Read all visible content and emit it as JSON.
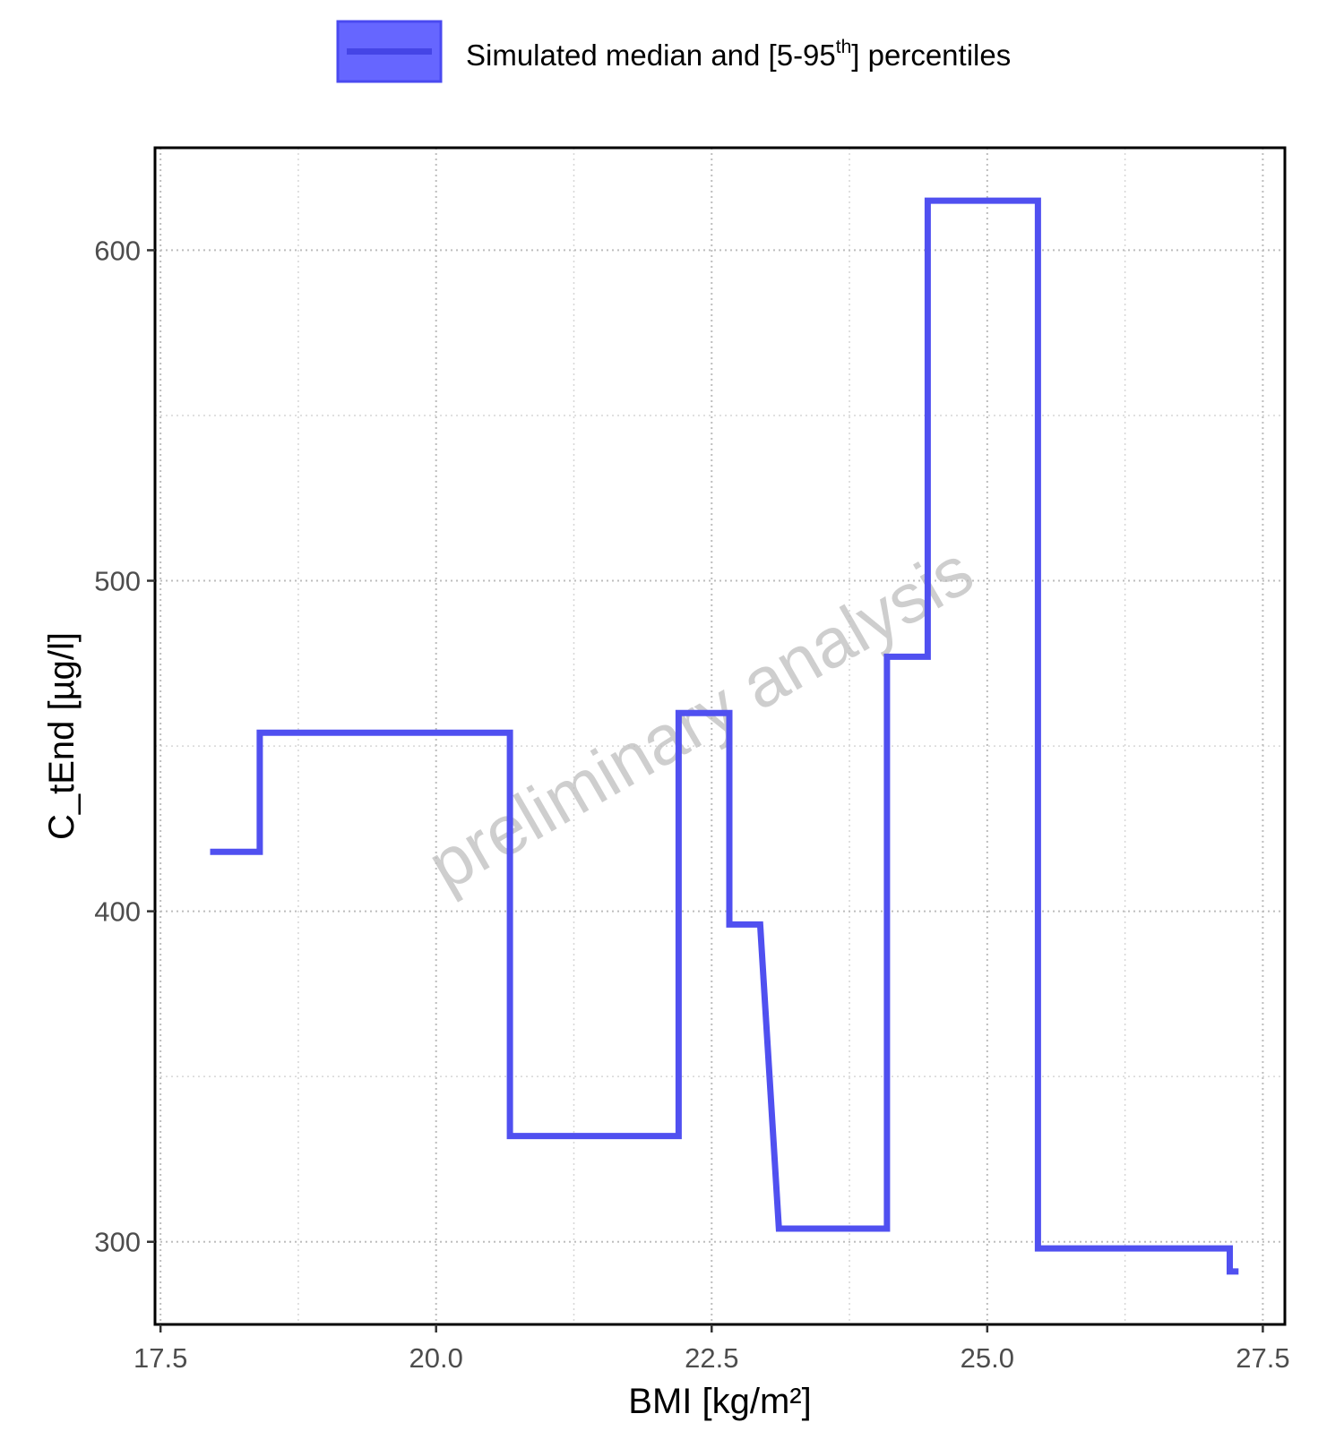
{
  "legend": {
    "label_main": "Simulated median and [5-95",
    "label_sup": "th",
    "label_end": "] percentiles",
    "line_color": "#5050f0",
    "fill_color": "#6666ff"
  },
  "watermark": "preliminary analysis",
  "chart_data": {
    "type": "line",
    "step": true,
    "xlabel": "BMI [kg/m²]",
    "ylabel": "C_tEnd [µg/l]",
    "xlim": [
      17.45,
      27.7
    ],
    "ylim": [
      275,
      631
    ],
    "x_ticks": [
      17.5,
      20.0,
      22.5,
      25.0,
      27.5
    ],
    "x_tick_labels": [
      "17.5",
      "20.0",
      "22.5",
      "25.0",
      "27.5"
    ],
    "y_ticks": [
      300,
      400,
      500,
      600
    ],
    "y_tick_labels": [
      "300",
      "400",
      "500",
      "600"
    ],
    "grid": true,
    "legend_position": "top",
    "series": [
      {
        "name": "Simulated median and [5-95th] percentiles",
        "color": "#5050f0",
        "points": [
          [
            17.95,
            418
          ],
          [
            18.4,
            418
          ],
          [
            18.4,
            454
          ],
          [
            20.67,
            454
          ],
          [
            20.67,
            332
          ],
          [
            22.2,
            332
          ],
          [
            22.2,
            460
          ],
          [
            22.66,
            460
          ],
          [
            22.66,
            396
          ],
          [
            22.94,
            396
          ],
          [
            23.11,
            304
          ],
          [
            24.09,
            304
          ],
          [
            24.09,
            477
          ],
          [
            24.46,
            477
          ],
          [
            24.46,
            615
          ],
          [
            25.46,
            615
          ],
          [
            25.46,
            298
          ],
          [
            27.2,
            298
          ],
          [
            27.2,
            291
          ],
          [
            27.28,
            291
          ]
        ]
      }
    ]
  }
}
